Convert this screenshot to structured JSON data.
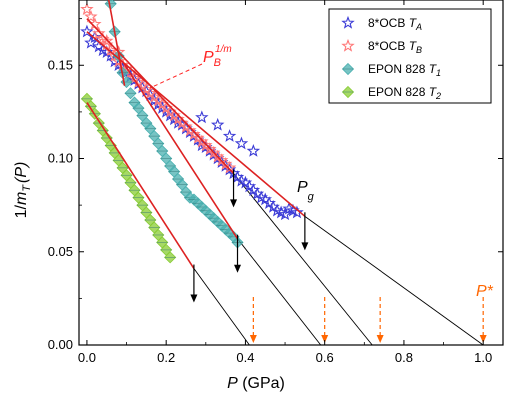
{
  "chart_data": {
    "type": "scatter",
    "xlabel_main": "P",
    "xlabel_unit": " (GPa)",
    "ylabel_prefix": "1/",
    "ylabel_m": "m",
    "ylabel_sub": "T",
    "ylabel_suffix": "(P)",
    "xlim": [
      -0.02,
      1.05
    ],
    "ylim": [
      0.0,
      0.185
    ],
    "xticks": [
      0.0,
      0.2,
      0.4,
      0.6,
      0.8,
      1.0
    ],
    "xtick_labels": [
      "0.0",
      "0.2",
      "0.4",
      "0.6",
      "0.8",
      "1.0"
    ],
    "yticks": [
      0.0,
      0.05,
      0.1,
      0.15
    ],
    "ytick_labels": [
      "0.00",
      "0.05",
      "0.10",
      "0.15"
    ],
    "legend_position": "top-right",
    "series": [
      {
        "name": "8*OCB T_A",
        "label_main": "8*OCB ",
        "label_sym": "T",
        "label_sub": "A",
        "marker": "star",
        "color": "#3b3bd6",
        "points": [
          [
            0.0,
            0.168
          ],
          [
            0.01,
            0.162
          ],
          [
            0.02,
            0.165
          ],
          [
            0.03,
            0.16
          ],
          [
            0.04,
            0.158
          ],
          [
            0.05,
            0.157
          ],
          [
            0.06,
            0.155
          ],
          [
            0.07,
            0.152
          ],
          [
            0.08,
            0.15
          ],
          [
            0.09,
            0.148
          ],
          [
            0.1,
            0.146
          ],
          [
            0.11,
            0.144
          ],
          [
            0.12,
            0.142
          ],
          [
            0.13,
            0.14
          ],
          [
            0.14,
            0.138
          ],
          [
            0.15,
            0.136
          ],
          [
            0.16,
            0.134
          ],
          [
            0.17,
            0.131
          ],
          [
            0.18,
            0.129
          ],
          [
            0.19,
            0.127
          ],
          [
            0.2,
            0.125
          ],
          [
            0.21,
            0.123
          ],
          [
            0.22,
            0.121
          ],
          [
            0.23,
            0.119
          ],
          [
            0.24,
            0.118
          ],
          [
            0.25,
            0.116
          ],
          [
            0.26,
            0.114
          ],
          [
            0.27,
            0.112
          ],
          [
            0.28,
            0.11
          ],
          [
            0.29,
            0.107
          ],
          [
            0.3,
            0.106
          ],
          [
            0.31,
            0.104
          ],
          [
            0.32,
            0.102
          ],
          [
            0.33,
            0.1
          ],
          [
            0.34,
            0.098
          ],
          [
            0.35,
            0.096
          ],
          [
            0.36,
            0.094
          ],
          [
            0.37,
            0.092
          ],
          [
            0.38,
            0.09
          ],
          [
            0.39,
            0.088
          ],
          [
            0.4,
            0.087
          ],
          [
            0.41,
            0.085
          ],
          [
            0.42,
            0.083
          ],
          [
            0.43,
            0.081
          ],
          [
            0.44,
            0.079
          ],
          [
            0.45,
            0.078
          ],
          [
            0.46,
            0.076
          ],
          [
            0.47,
            0.074
          ],
          [
            0.48,
            0.072
          ],
          [
            0.49,
            0.071
          ],
          [
            0.5,
            0.07
          ],
          [
            0.51,
            0.073
          ],
          [
            0.52,
            0.072
          ],
          [
            0.53,
            0.071
          ],
          [
            0.29,
            0.122
          ],
          [
            0.33,
            0.118
          ],
          [
            0.36,
            0.112
          ],
          [
            0.39,
            0.108
          ],
          [
            0.42,
            0.104
          ]
        ],
        "fit": [
          [
            0.0,
            0.168
          ],
          [
            0.55,
            0.069
          ]
        ],
        "extrapolation": [
          [
            0.55,
            0.069
          ],
          [
            1.0,
            0.0
          ]
        ],
        "arrow_x": 0.55
      },
      {
        "name": "8*OCB T_B",
        "label_main": "8*OCB ",
        "label_sym": "T",
        "label_sub": "B",
        "marker": "star",
        "color": "#ff7777",
        "points": [
          [
            0.0,
            0.18
          ],
          [
            0.01,
            0.176
          ],
          [
            0.02,
            0.172
          ],
          [
            0.03,
            0.167
          ],
          [
            0.04,
            0.164
          ],
          [
            0.05,
            0.161
          ],
          [
            0.06,
            0.158
          ],
          [
            0.07,
            0.155
          ],
          [
            0.08,
            0.152
          ],
          [
            0.09,
            0.15
          ],
          [
            0.1,
            0.148
          ],
          [
            0.11,
            0.146
          ],
          [
            0.12,
            0.143
          ],
          [
            0.13,
            0.141
          ],
          [
            0.14,
            0.139
          ],
          [
            0.15,
            0.137
          ],
          [
            0.16,
            0.135
          ],
          [
            0.17,
            0.133
          ],
          [
            0.18,
            0.131
          ],
          [
            0.19,
            0.129
          ],
          [
            0.2,
            0.127
          ],
          [
            0.21,
            0.125
          ],
          [
            0.22,
            0.123
          ],
          [
            0.23,
            0.121
          ],
          [
            0.24,
            0.119
          ],
          [
            0.25,
            0.117
          ],
          [
            0.26,
            0.115
          ],
          [
            0.27,
            0.113
          ],
          [
            0.28,
            0.111
          ],
          [
            0.29,
            0.109
          ],
          [
            0.3,
            0.107
          ],
          [
            0.31,
            0.105
          ],
          [
            0.32,
            0.103
          ],
          [
            0.33,
            0.101
          ],
          [
            0.34,
            0.099
          ],
          [
            0.35,
            0.097
          ],
          [
            0.36,
            0.095
          ],
          [
            0.05,
            0.163
          ],
          [
            0.08,
            0.157
          ]
        ],
        "fit": [
          [
            0.0,
            0.175
          ],
          [
            0.37,
            0.092
          ]
        ],
        "extrapolation": [
          [
            0.37,
            0.092
          ],
          [
            0.72,
            0.0
          ]
        ],
        "arrow_x": 0.37
      },
      {
        "name": "EPON 828 T_1",
        "label_main": "EPON 828 ",
        "label_sym": "T",
        "label_sub": "1",
        "marker": "diamond",
        "color": "#4ab0b0",
        "points": [
          [
            0.06,
            0.183
          ],
          [
            0.07,
            0.168
          ],
          [
            0.08,
            0.155
          ],
          [
            0.09,
            0.146
          ],
          [
            0.1,
            0.141
          ],
          [
            0.11,
            0.135
          ],
          [
            0.12,
            0.13
          ],
          [
            0.13,
            0.127
          ],
          [
            0.14,
            0.123
          ],
          [
            0.15,
            0.119
          ],
          [
            0.16,
            0.116
          ],
          [
            0.17,
            0.112
          ],
          [
            0.18,
            0.108
          ],
          [
            0.19,
            0.104
          ],
          [
            0.2,
            0.1
          ],
          [
            0.21,
            0.096
          ],
          [
            0.22,
            0.093
          ],
          [
            0.23,
            0.089
          ],
          [
            0.24,
            0.086
          ],
          [
            0.25,
            0.082
          ],
          [
            0.26,
            0.079
          ],
          [
            0.27,
            0.078
          ],
          [
            0.28,
            0.076
          ],
          [
            0.29,
            0.074
          ],
          [
            0.3,
            0.072
          ],
          [
            0.31,
            0.07
          ],
          [
            0.32,
            0.068
          ],
          [
            0.33,
            0.066
          ],
          [
            0.34,
            0.064
          ],
          [
            0.35,
            0.062
          ],
          [
            0.36,
            0.06
          ],
          [
            0.37,
            0.058
          ],
          [
            0.38,
            0.055
          ]
        ],
        "fit": [
          [
            0.09,
            0.152
          ],
          [
            0.38,
            0.057
          ]
        ],
        "extrapolation": [
          [
            0.38,
            0.057
          ],
          [
            0.59,
            0.0
          ]
        ],
        "arrow_x": 0.38,
        "steep": [
          [
            0.055,
            0.185
          ],
          [
            0.095,
            0.139
          ]
        ]
      },
      {
        "name": "EPON 828 T_2",
        "label_main": "EPON 828 ",
        "label_sym": "T",
        "label_sub": "2",
        "marker": "diamond",
        "color": "#88cc33",
        "points": [
          [
            0.0,
            0.132
          ],
          [
            0.01,
            0.128
          ],
          [
            0.02,
            0.124
          ],
          [
            0.03,
            0.119
          ],
          [
            0.04,
            0.115
          ],
          [
            0.05,
            0.111
          ],
          [
            0.06,
            0.107
          ],
          [
            0.07,
            0.103
          ],
          [
            0.08,
            0.099
          ],
          [
            0.09,
            0.095
          ],
          [
            0.1,
            0.091
          ],
          [
            0.11,
            0.087
          ],
          [
            0.12,
            0.083
          ],
          [
            0.13,
            0.079
          ],
          [
            0.14,
            0.075
          ],
          [
            0.15,
            0.071
          ],
          [
            0.16,
            0.067
          ],
          [
            0.17,
            0.063
          ],
          [
            0.18,
            0.059
          ],
          [
            0.19,
            0.055
          ],
          [
            0.2,
            0.051
          ],
          [
            0.21,
            0.047
          ]
        ],
        "fit": [
          [
            0.0,
            0.13
          ],
          [
            0.27,
            0.041
          ]
        ],
        "extrapolation": [
          [
            0.27,
            0.041
          ],
          [
            0.41,
            0.0
          ]
        ],
        "arrow_x": 0.27
      }
    ],
    "orange_arrows_x": [
      0.42,
      0.6,
      0.74,
      1.0
    ],
    "annotations": {
      "pb_main": "P",
      "pb_sub": "B",
      "pb_sup": "1/m",
      "pb_color": "#ff2222",
      "pg_main": "P",
      "pg_sub": "g",
      "pstar": "P*",
      "pstar_color": "#ff6600"
    },
    "colors": {
      "fit_line": "#dd2222",
      "extrapolation": "#000000",
      "orange_arrow": "#ff6600"
    }
  }
}
